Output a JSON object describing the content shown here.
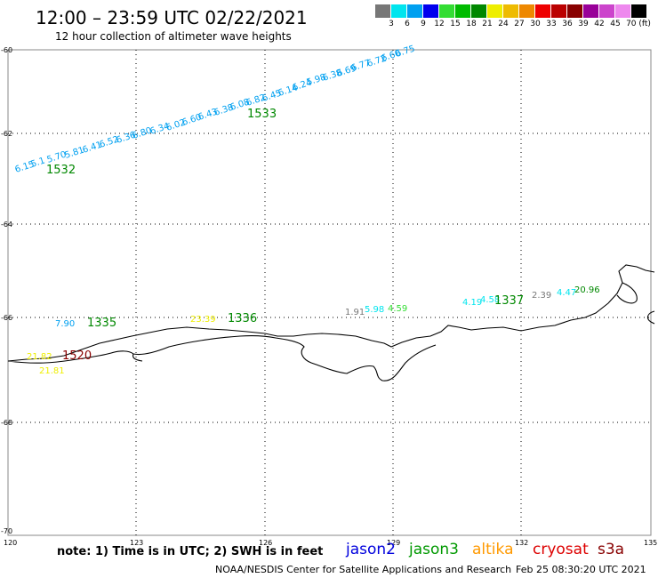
{
  "header": {
    "title": "12:00 – 23:59 UTC 02/22/2021",
    "subtitle": "12 hour collection of altimeter wave heights"
  },
  "scale": {
    "labels": [
      "3",
      "6",
      "9",
      "12",
      "15",
      "18",
      "21",
      "24",
      "27",
      "30",
      "33",
      "36",
      "39",
      "42",
      "45",
      "70 (ft)"
    ],
    "colors": [
      "#777777",
      "#00e5ee",
      "#00a0f0",
      "#0000ee",
      "#33dd33",
      "#00bb00",
      "#008800",
      "#eeee00",
      "#eebb00",
      "#ee8800",
      "#ee0000",
      "#bb0000",
      "#880000",
      "#990099",
      "#cc44cc",
      "#ee88ee",
      "#000000"
    ]
  },
  "axes": {
    "lat_labels": [
      "-60",
      "-62",
      "-64",
      "-66",
      "-68",
      "-70"
    ],
    "lon_labels": [
      "120",
      "123",
      "126",
      "129",
      "132",
      "135"
    ]
  },
  "tracks": [
    {
      "id": "1532",
      "color": "#008800",
      "labels": [
        {
          "t": "6.15",
          "c": "#00a0f0"
        },
        {
          "t": "5.1",
          "c": "#00a0f0"
        },
        {
          "t": "5.70",
          "c": "#00a0f0"
        },
        {
          "t": "5.81",
          "c": "#00a0f0"
        },
        {
          "t": "6.41",
          "c": "#00a0f0"
        },
        {
          "t": "6.52",
          "c": "#00a0f0"
        },
        {
          "t": "6.36",
          "c": "#00a0f0"
        },
        {
          "t": "6.80",
          "c": "#00a0f0"
        },
        {
          "t": "6.34",
          "c": "#00a0f0"
        }
      ]
    },
    {
      "id": "1533",
      "color": "#008800",
      "labels": [
        {
          "t": "6.02",
          "c": "#00a0f0"
        },
        {
          "t": "6.60",
          "c": "#00a0f0"
        },
        {
          "t": "6.43",
          "c": "#00a0f0"
        },
        {
          "t": "6.38",
          "c": "#00a0f0"
        },
        {
          "t": "6.08",
          "c": "#00a0f0"
        },
        {
          "t": "6.82",
          "c": "#00a0f0"
        },
        {
          "t": "6.45",
          "c": "#00a0f0"
        },
        {
          "t": "6.14",
          "c": "#00a0f0"
        },
        {
          "t": "6.24",
          "c": "#00a0f0"
        },
        {
          "t": "5.98",
          "c": "#00a0f0"
        },
        {
          "t": "6.38",
          "c": "#00a0f0"
        },
        {
          "t": "6.69",
          "c": "#00a0f0"
        },
        {
          "t": "6.77",
          "c": "#00a0f0"
        },
        {
          "t": "6.72",
          "c": "#00a0f0"
        },
        {
          "t": "6.60",
          "c": "#00a0f0"
        },
        {
          "t": "6.75",
          "c": "#00a0f0"
        }
      ]
    }
  ],
  "point_labels": [
    {
      "t": "7.90",
      "c": "#00a0f0"
    },
    {
      "t": "1335",
      "c": "#008800"
    },
    {
      "t": "23.39",
      "c": "#eeee00"
    },
    {
      "t": "1336",
      "c": "#008800"
    },
    {
      "t": "1.91",
      "c": "#777777"
    },
    {
      "t": "5.98",
      "c": "#00e5ee"
    },
    {
      "t": "4.59",
      "c": "#33dd33"
    },
    {
      "t": "4.19",
      "c": "#00e5ee"
    },
    {
      "t": "4.58",
      "c": "#00e5ee"
    },
    {
      "t": "1337",
      "c": "#008800"
    },
    {
      "t": "2.39",
      "c": "#777777"
    },
    {
      "t": "4.47",
      "c": "#00e5ee"
    },
    {
      "t": "20.96",
      "c": "#008800"
    },
    {
      "t": "21.82",
      "c": "#eeee00"
    },
    {
      "t": "1520",
      "c": "#880000"
    },
    {
      "t": "21.81",
      "c": "#eeee00"
    }
  ],
  "footer": {
    "note": "note: 1) Time is in UTC; 2) SWH is in feet",
    "legend": [
      {
        "label": "jason2",
        "color": "#0000dd"
      },
      {
        "label": "jason3",
        "color": "#009900"
      },
      {
        "label": "altika",
        "color": "#ff9900"
      },
      {
        "label": "cryosat",
        "color": "#dd0000"
      },
      {
        "label": "s3a",
        "color": "#880000"
      }
    ],
    "credit": "NOAA/NESDIS Center for Satellite Applications and Research",
    "timestamp": "Feb 25 08:30:20 UTC 2021"
  }
}
